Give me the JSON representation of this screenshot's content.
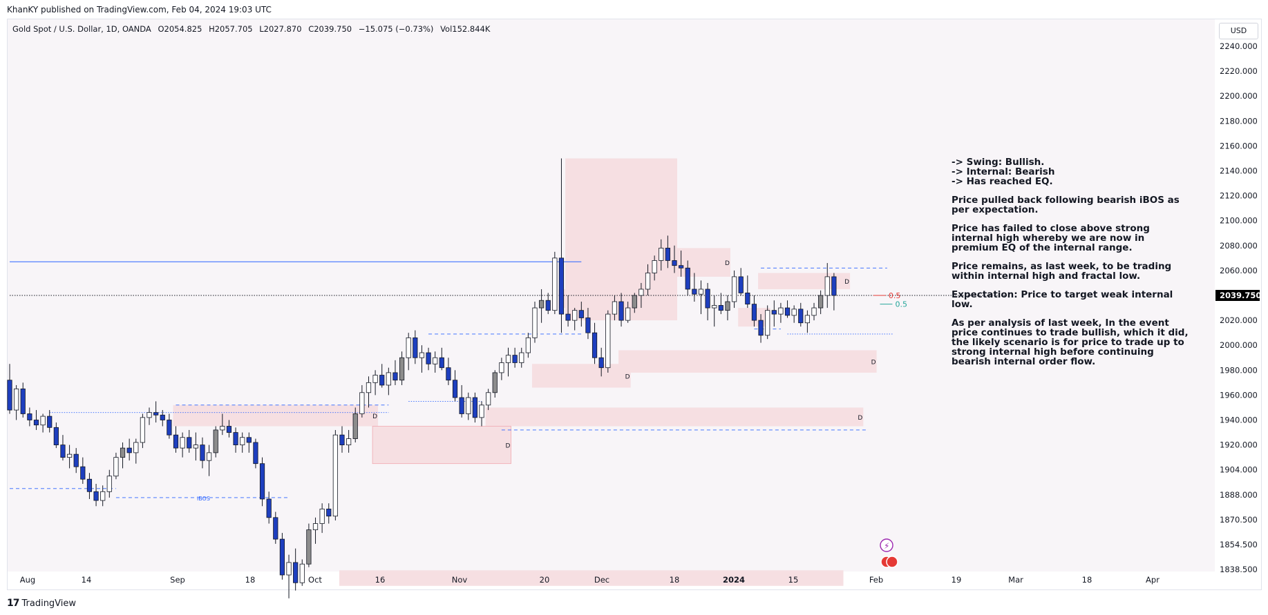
{
  "header": {
    "published": "KhanKY published on TradingView.com, Feb 04, 2024 19:03 UTC"
  },
  "legend": {
    "symbol": "Gold Spot / U.S. Dollar, 1D, OANDA",
    "open": "O2054.825",
    "high": "H2057.705",
    "low": "L2027.870",
    "close": "C2039.750",
    "change": "−15.075 (−0.73%)",
    "volume": "Vol152.844K"
  },
  "currency_button": "USD",
  "footer": {
    "brand": "TradingView"
  },
  "colors": {
    "up": "#ffffff",
    "up_alt": "#8c8c8c",
    "down": "#1e3fbf",
    "zone": "#f6dfe2",
    "zone_border": "#f0a8b0",
    "level_blue": "#2962ff",
    "fib_red": "#e53935",
    "fib_green": "#26a69a",
    "last_price_bg": "#000000"
  },
  "annotations": {
    "p1": "-> Swing: Bullish.\n-> Internal: Bearish\n-> Has reached EQ.",
    "p2": "Price pulled back following bearish iBOS as per expectation.",
    "p3": "Price has failed to close above strong internal high whereby we are now in premium EQ of the internal range.",
    "p4": "Price remains, as last week, to be trading within internal high and fractal low.",
    "p5": "Expectation: Price to target weak internal low.",
    "p6": "As per analysis of last week, In the event price continues to trade bullish, which it did, the likely scenario is for price to trade up to strong internal high before continuing bearish internal order flow."
  },
  "chart_data": {
    "type": "candlestick",
    "symbol": "Gold Spot / U.S. Dollar",
    "timeframe": "1D",
    "y_axis": {
      "ticks": [
        2240,
        2220,
        2200,
        2180,
        2160,
        2140,
        2120,
        2100,
        2080,
        2060,
        2040,
        2020,
        2000,
        1980,
        1960,
        1940,
        1920,
        1904,
        1888,
        1870.5,
        1854.5,
        1838.5
      ],
      "tick_labels": [
        "2240.000",
        "2220.000",
        "2200.000",
        "2180.000",
        "2160.000",
        "2140.000",
        "2120.000",
        "2100.000",
        "2080.000",
        "2060.000",
        "2040.000",
        "2020.000",
        "2000.000",
        "1980.000",
        "1960.000",
        "1940.000",
        "1920.000",
        "1904.000",
        "1888.000",
        "1870.500",
        "1854.500",
        "1838.500"
      ],
      "last_price": "2039.750"
    },
    "x_axis": {
      "labels": [
        "Aug",
        "14",
        "Sep",
        "18",
        "Oct",
        "16",
        "Nov",
        "20",
        "Dec",
        "18",
        "2024",
        "15",
        "Feb",
        "19",
        "Mar",
        "18",
        "Apr"
      ],
      "bold": [
        "2024"
      ]
    },
    "candles": [
      [
        1972,
        1985,
        1945,
        1948
      ],
      [
        1948,
        1968,
        1940,
        1965
      ],
      [
        1965,
        1970,
        1942,
        1945
      ],
      [
        1945,
        1950,
        1935,
        1940
      ],
      [
        1940,
        1948,
        1932,
        1936
      ],
      [
        1936,
        1945,
        1930,
        1943
      ],
      [
        1943,
        1948,
        1930,
        1934
      ],
      [
        1934,
        1938,
        1918,
        1920
      ],
      [
        1920,
        1928,
        1910,
        1912
      ],
      [
        1912,
        1920,
        1905,
        1914
      ],
      [
        1914,
        1918,
        1902,
        1906
      ],
      [
        1906,
        1912,
        1895,
        1898
      ],
      [
        1898,
        1902,
        1885,
        1890
      ],
      [
        1890,
        1895,
        1880,
        1884
      ],
      [
        1884,
        1894,
        1880,
        1890
      ],
      [
        1890,
        1904,
        1886,
        1900
      ],
      [
        1900,
        1915,
        1898,
        1912
      ],
      [
        1912,
        1922,
        1905,
        1918
      ],
      [
        1918,
        1925,
        1910,
        1915
      ],
      [
        1915,
        1925,
        1908,
        1922
      ],
      [
        1922,
        1945,
        1918,
        1942
      ],
      [
        1942,
        1950,
        1936,
        1946
      ],
      [
        1946,
        1955,
        1938,
        1944
      ],
      [
        1944,
        1948,
        1935,
        1940
      ],
      [
        1940,
        1945,
        1925,
        1928
      ],
      [
        1928,
        1935,
        1915,
        1918
      ],
      [
        1918,
        1930,
        1912,
        1926
      ],
      [
        1926,
        1932,
        1915,
        1918
      ],
      [
        1918,
        1930,
        1910,
        1920
      ],
      [
        1920,
        1926,
        1905,
        1910
      ],
      [
        1910,
        1920,
        1900,
        1915
      ],
      [
        1915,
        1935,
        1912,
        1932
      ],
      [
        1932,
        1945,
        1928,
        1935
      ],
      [
        1935,
        1940,
        1926,
        1930
      ],
      [
        1930,
        1934,
        1915,
        1920
      ],
      [
        1920,
        1930,
        1915,
        1926
      ],
      [
        1926,
        1930,
        1915,
        1922
      ],
      [
        1922,
        1925,
        1905,
        1908
      ],
      [
        1908,
        1912,
        1880,
        1885
      ],
      [
        1885,
        1890,
        1868,
        1872
      ],
      [
        1872,
        1876,
        1855,
        1858
      ],
      [
        1858,
        1862,
        1832,
        1835
      ],
      [
        1835,
        1848,
        1820,
        1843
      ],
      [
        1843,
        1852,
        1825,
        1830
      ],
      [
        1830,
        1845,
        1828,
        1842
      ],
      [
        1842,
        1868,
        1840,
        1864
      ],
      [
        1864,
        1872,
        1855,
        1868
      ],
      [
        1868,
        1882,
        1862,
        1878
      ],
      [
        1878,
        1882,
        1868,
        1873
      ],
      [
        1873,
        1932,
        1870,
        1928
      ],
      [
        1928,
        1935,
        1915,
        1920
      ],
      [
        1920,
        1932,
        1915,
        1925
      ],
      [
        1925,
        1950,
        1922,
        1945
      ],
      [
        1945,
        1968,
        1942,
        1962
      ],
      [
        1962,
        1975,
        1950,
        1970
      ],
      [
        1970,
        1980,
        1960,
        1976
      ],
      [
        1976,
        1985,
        1966,
        1968
      ],
      [
        1968,
        1982,
        1960,
        1978
      ],
      [
        1978,
        1988,
        1968,
        1972
      ],
      [
        1972,
        1995,
        1968,
        1990
      ],
      [
        1990,
        2010,
        1980,
        2006
      ],
      [
        2006,
        2012,
        1985,
        1990
      ],
      [
        1990,
        2000,
        1978,
        1994
      ],
      [
        1994,
        1998,
        1980,
        1985
      ],
      [
        1985,
        1995,
        1978,
        1990
      ],
      [
        1990,
        1998,
        1980,
        1982
      ],
      [
        1982,
        1990,
        1968,
        1972
      ],
      [
        1972,
        1980,
        1955,
        1958
      ],
      [
        1958,
        1968,
        1942,
        1945
      ],
      [
        1945,
        1962,
        1940,
        1958
      ],
      [
        1958,
        1962,
        1938,
        1942
      ],
      [
        1942,
        1955,
        1935,
        1952
      ],
      [
        1952,
        1965,
        1948,
        1962
      ],
      [
        1962,
        1980,
        1958,
        1978
      ],
      [
        1978,
        1990,
        1972,
        1986
      ],
      [
        1986,
        1998,
        1975,
        1992
      ],
      [
        1992,
        1998,
        1982,
        1986
      ],
      [
        1986,
        1998,
        1982,
        1994
      ],
      [
        1994,
        2010,
        1990,
        2006
      ],
      [
        2006,
        2035,
        2002,
        2030
      ],
      [
        2030,
        2045,
        2018,
        2036
      ],
      [
        2036,
        2042,
        2025,
        2028
      ],
      [
        2028,
        2075,
        2025,
        2070
      ],
      [
        2070,
        2150,
        2010,
        2025
      ],
      [
        2025,
        2040,
        2015,
        2020
      ],
      [
        2020,
        2030,
        2012,
        2028
      ],
      [
        2028,
        2035,
        2015,
        2022
      ],
      [
        2022,
        2030,
        2005,
        2010
      ],
      [
        2010,
        2018,
        1985,
        1990
      ],
      [
        1990,
        1998,
        1975,
        1982
      ],
      [
        1982,
        2028,
        1978,
        2025
      ],
      [
        2025,
        2040,
        2020,
        2035
      ],
      [
        2035,
        2042,
        2015,
        2020
      ],
      [
        2020,
        2035,
        2018,
        2030
      ],
      [
        2030,
        2042,
        2026,
        2040
      ],
      [
        2040,
        2050,
        2030,
        2045
      ],
      [
        2045,
        2065,
        2040,
        2058
      ],
      [
        2058,
        2072,
        2052,
        2068
      ],
      [
        2068,
        2085,
        2060,
        2078
      ],
      [
        2078,
        2088,
        2062,
        2068
      ],
      [
        2068,
        2080,
        2058,
        2064
      ],
      [
        2064,
        2076,
        2055,
        2062
      ],
      [
        2062,
        2068,
        2040,
        2045
      ],
      [
        2045,
        2058,
        2035,
        2041
      ],
      [
        2041,
        2052,
        2025,
        2045
      ],
      [
        2045,
        2050,
        2020,
        2030
      ],
      [
        2030,
        2040,
        2015,
        2032
      ],
      [
        2032,
        2042,
        2025,
        2028
      ],
      [
        2028,
        2040,
        2020,
        2035
      ],
      [
        2035,
        2060,
        2030,
        2055
      ],
      [
        2055,
        2062,
        2040,
        2042
      ],
      [
        2042,
        2056,
        2030,
        2033
      ],
      [
        2033,
        2040,
        2015,
        2020
      ],
      [
        2020,
        2025,
        2002,
        2008
      ],
      [
        2008,
        2032,
        2005,
        2028
      ],
      [
        2028,
        2036,
        2015,
        2025
      ],
      [
        2025,
        2034,
        2018,
        2030
      ],
      [
        2030,
        2036,
        2022,
        2024
      ],
      [
        2024,
        2032,
        2018,
        2029
      ],
      [
        2029,
        2034,
        2015,
        2018
      ],
      [
        2018,
        2028,
        2010,
        2024
      ],
      [
        2024,
        2034,
        2020,
        2030
      ],
      [
        2030,
        2044,
        2025,
        2040
      ],
      [
        2040,
        2066,
        2030,
        2055
      ],
      [
        2055,
        2058,
        2028,
        2040
      ]
    ],
    "ohlc_fields": [
      "open",
      "high",
      "low",
      "close"
    ],
    "zones": [
      {
        "from_index": 84,
        "to_index": 100,
        "top": 2150,
        "bottom": 2020,
        "label": ""
      },
      {
        "from_index": 100,
        "to_index": 108,
        "top": 2078,
        "bottom": 2055,
        "label": "D"
      },
      {
        "from_index": 83,
        "to_index": 99,
        "top": 2045,
        "bottom": 2030,
        "label": ""
      },
      {
        "from_index": 113,
        "to_index": 126,
        "top": 2058,
        "bottom": 2045,
        "label": "D"
      },
      {
        "from_index": 110,
        "to_index": 114,
        "top": 2030,
        "bottom": 2015,
        "label": ""
      },
      {
        "from_index": 92,
        "to_index": 130,
        "top": 1996,
        "bottom": 1978,
        "label": "D"
      },
      {
        "from_index": 79,
        "to_index": 93,
        "top": 1985,
        "bottom": 1966,
        "label": "D"
      },
      {
        "from_index": 25,
        "to_index": 55,
        "top": 1952,
        "bottom": 1935,
        "label": "D"
      },
      {
        "from_index": 72,
        "to_index": 128,
        "top": 1950,
        "bottom": 1935,
        "label": "D"
      },
      {
        "from_index": 55,
        "to_index": 75,
        "top": 1935,
        "bottom": 1908,
        "label": "D"
      },
      {
        "from_index": 50,
        "to_index": 125,
        "top": 1838,
        "bottom": 1828,
        "label": ""
      }
    ],
    "levels": [
      {
        "price": 2067,
        "from_index": 0,
        "to_index": 86,
        "style": "solid",
        "color": "blue"
      },
      {
        "price": 1952,
        "from_index": 25,
        "to_index": 57,
        "style": "dashed",
        "color": "blue"
      },
      {
        "price": 1946,
        "from_index": 6,
        "to_index": 57,
        "style": "dotted",
        "color": "blue"
      },
      {
        "price": 2009,
        "from_index": 63,
        "to_index": 86,
        "style": "dashed",
        "color": "blue"
      },
      {
        "price": 1955,
        "from_index": 60,
        "to_index": 71,
        "style": "dotted",
        "color": "blue"
      },
      {
        "price": 2062,
        "from_index": 113,
        "to_index": 132,
        "style": "dashed",
        "color": "blue"
      },
      {
        "price": 2009,
        "from_index": 117,
        "to_index": 133,
        "style": "dotted",
        "color": "blue"
      },
      {
        "price": 2013,
        "from_index": 112,
        "to_index": 116,
        "style": "dashed",
        "color": "blue"
      },
      {
        "price": 1932,
        "from_index": 74,
        "to_index": 129,
        "style": "dashed",
        "color": "blue"
      },
      {
        "price": 1892,
        "from_index": 0,
        "to_index": 16,
        "style": "dashed",
        "color": "blue"
      },
      {
        "price": 1886,
        "from_index": 16,
        "to_index": 42,
        "style": "dashed",
        "color": "blue"
      },
      {
        "price": 2040,
        "from_index": 0,
        "to_index": 150,
        "style": "dotted",
        "color": "black"
      }
    ],
    "labels": [
      {
        "text": "iBOS",
        "index": 29,
        "price": 1886
      },
      {
        "text": "0.5",
        "index": 132,
        "price": 2040
      },
      {
        "text": "0.5",
        "index": 133,
        "price": 2033
      }
    ]
  }
}
